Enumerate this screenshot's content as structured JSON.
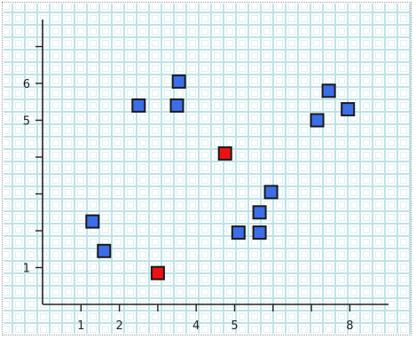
{
  "chart_data": {
    "type": "scatter",
    "title": "",
    "xlabel": "",
    "ylabel": "",
    "xlim": [
      0,
      9
    ],
    "ylim": [
      0,
      7
    ],
    "x_tick_positions": [
      1,
      2,
      3,
      4,
      5,
      6,
      7,
      8
    ],
    "x_tick_labels": [
      "1",
      "2",
      "",
      "4",
      "5",
      "",
      "",
      "8"
    ],
    "y_tick_positions": [
      1,
      2,
      3,
      4,
      5,
      6,
      7
    ],
    "y_tick_labels": [
      "1",
      "",
      "",
      "",
      "5",
      "6",
      ""
    ],
    "grid": true,
    "legend": "none",
    "colors": {
      "blue": "#3b6ee8",
      "red": "#ee1111",
      "marker_edge": "#1a1a1a",
      "axis": "#222222",
      "grid_outer": "#bfe3e6",
      "grid_inner": "#e0f1f3"
    },
    "series": [
      {
        "color": "blue",
        "points": [
          [
            1.3,
            2.25
          ],
          [
            1.6,
            1.45
          ],
          [
            2.5,
            5.4
          ],
          [
            3.5,
            5.4
          ],
          [
            3.55,
            6.05
          ],
          [
            5.1,
            1.95
          ],
          [
            5.65,
            1.95
          ],
          [
            5.65,
            2.5
          ],
          [
            5.95,
            3.05
          ],
          [
            7.15,
            5.0
          ],
          [
            7.45,
            5.8
          ],
          [
            7.95,
            5.3
          ]
        ]
      },
      {
        "color": "red",
        "points": [
          [
            4.75,
            4.1
          ],
          [
            3.0,
            0.85
          ]
        ]
      }
    ]
  }
}
